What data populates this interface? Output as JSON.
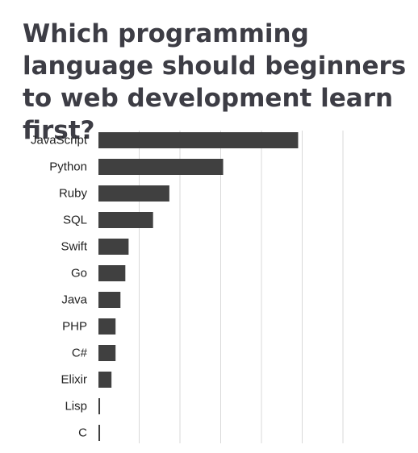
{
  "chart_data": {
    "type": "bar",
    "orientation": "horizontal",
    "title": "Which programming language should beginners to web development learn first?",
    "categories": [
      "JavaScript",
      "Python",
      "Ruby",
      "SQL",
      "Swift",
      "Go",
      "Java",
      "PHP",
      "C#",
      "Elixir",
      "Lisp",
      "C"
    ],
    "values": [
      24.5,
      15.3,
      8.7,
      6.7,
      3.7,
      3.3,
      2.7,
      2.1,
      2.1,
      1.6,
      0.2,
      0.2
    ],
    "xlim": [
      0,
      30
    ],
    "grid": true,
    "legend": "none",
    "colors": {
      "bar": "#404040",
      "title": "#3d3d45",
      "grid": "#d9d9d9"
    }
  }
}
